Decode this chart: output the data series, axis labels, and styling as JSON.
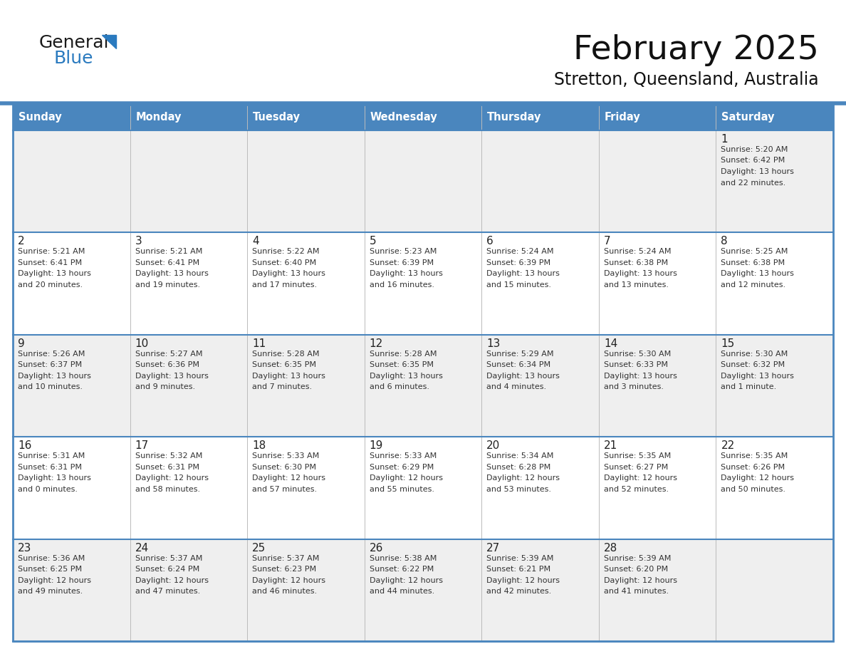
{
  "title": "February 2025",
  "subtitle": "Stretton, Queensland, Australia",
  "header_bg": "#4a86be",
  "header_text_color": "#ffffff",
  "days_of_week": [
    "Sunday",
    "Monday",
    "Tuesday",
    "Wednesday",
    "Thursday",
    "Friday",
    "Saturday"
  ],
  "row_bg_odd": "#efefef",
  "row_bg_even": "#ffffff",
  "cell_text_color": "#333333",
  "day_num_color": "#222222",
  "border_color": "#4a86be",
  "title_color": "#111111",
  "subtitle_color": "#111111",
  "calendar": [
    [
      {
        "day": "",
        "sunrise": "",
        "sunset": "",
        "daylight": ""
      },
      {
        "day": "",
        "sunrise": "",
        "sunset": "",
        "daylight": ""
      },
      {
        "day": "",
        "sunrise": "",
        "sunset": "",
        "daylight": ""
      },
      {
        "day": "",
        "sunrise": "",
        "sunset": "",
        "daylight": ""
      },
      {
        "day": "",
        "sunrise": "",
        "sunset": "",
        "daylight": ""
      },
      {
        "day": "",
        "sunrise": "",
        "sunset": "",
        "daylight": ""
      },
      {
        "day": "1",
        "sunrise": "5:20 AM",
        "sunset": "6:42 PM",
        "daylight": "13 hours\nand 22 minutes."
      }
    ],
    [
      {
        "day": "2",
        "sunrise": "5:21 AM",
        "sunset": "6:41 PM",
        "daylight": "13 hours\nand 20 minutes."
      },
      {
        "day": "3",
        "sunrise": "5:21 AM",
        "sunset": "6:41 PM",
        "daylight": "13 hours\nand 19 minutes."
      },
      {
        "day": "4",
        "sunrise": "5:22 AM",
        "sunset": "6:40 PM",
        "daylight": "13 hours\nand 17 minutes."
      },
      {
        "day": "5",
        "sunrise": "5:23 AM",
        "sunset": "6:39 PM",
        "daylight": "13 hours\nand 16 minutes."
      },
      {
        "day": "6",
        "sunrise": "5:24 AM",
        "sunset": "6:39 PM",
        "daylight": "13 hours\nand 15 minutes."
      },
      {
        "day": "7",
        "sunrise": "5:24 AM",
        "sunset": "6:38 PM",
        "daylight": "13 hours\nand 13 minutes."
      },
      {
        "day": "8",
        "sunrise": "5:25 AM",
        "sunset": "6:38 PM",
        "daylight": "13 hours\nand 12 minutes."
      }
    ],
    [
      {
        "day": "9",
        "sunrise": "5:26 AM",
        "sunset": "6:37 PM",
        "daylight": "13 hours\nand 10 minutes."
      },
      {
        "day": "10",
        "sunrise": "5:27 AM",
        "sunset": "6:36 PM",
        "daylight": "13 hours\nand 9 minutes."
      },
      {
        "day": "11",
        "sunrise": "5:28 AM",
        "sunset": "6:35 PM",
        "daylight": "13 hours\nand 7 minutes."
      },
      {
        "day": "12",
        "sunrise": "5:28 AM",
        "sunset": "6:35 PM",
        "daylight": "13 hours\nand 6 minutes."
      },
      {
        "day": "13",
        "sunrise": "5:29 AM",
        "sunset": "6:34 PM",
        "daylight": "13 hours\nand 4 minutes."
      },
      {
        "day": "14",
        "sunrise": "5:30 AM",
        "sunset": "6:33 PM",
        "daylight": "13 hours\nand 3 minutes."
      },
      {
        "day": "15",
        "sunrise": "5:30 AM",
        "sunset": "6:32 PM",
        "daylight": "13 hours\nand 1 minute."
      }
    ],
    [
      {
        "day": "16",
        "sunrise": "5:31 AM",
        "sunset": "6:31 PM",
        "daylight": "13 hours\nand 0 minutes."
      },
      {
        "day": "17",
        "sunrise": "5:32 AM",
        "sunset": "6:31 PM",
        "daylight": "12 hours\nand 58 minutes."
      },
      {
        "day": "18",
        "sunrise": "5:33 AM",
        "sunset": "6:30 PM",
        "daylight": "12 hours\nand 57 minutes."
      },
      {
        "day": "19",
        "sunrise": "5:33 AM",
        "sunset": "6:29 PM",
        "daylight": "12 hours\nand 55 minutes."
      },
      {
        "day": "20",
        "sunrise": "5:34 AM",
        "sunset": "6:28 PM",
        "daylight": "12 hours\nand 53 minutes."
      },
      {
        "day": "21",
        "sunrise": "5:35 AM",
        "sunset": "6:27 PM",
        "daylight": "12 hours\nand 52 minutes."
      },
      {
        "day": "22",
        "sunrise": "5:35 AM",
        "sunset": "6:26 PM",
        "daylight": "12 hours\nand 50 minutes."
      }
    ],
    [
      {
        "day": "23",
        "sunrise": "5:36 AM",
        "sunset": "6:25 PM",
        "daylight": "12 hours\nand 49 minutes."
      },
      {
        "day": "24",
        "sunrise": "5:37 AM",
        "sunset": "6:24 PM",
        "daylight": "12 hours\nand 47 minutes."
      },
      {
        "day": "25",
        "sunrise": "5:37 AM",
        "sunset": "6:23 PM",
        "daylight": "12 hours\nand 46 minutes."
      },
      {
        "day": "26",
        "sunrise": "5:38 AM",
        "sunset": "6:22 PM",
        "daylight": "12 hours\nand 44 minutes."
      },
      {
        "day": "27",
        "sunrise": "5:39 AM",
        "sunset": "6:21 PM",
        "daylight": "12 hours\nand 42 minutes."
      },
      {
        "day": "28",
        "sunrise": "5:39 AM",
        "sunset": "6:20 PM",
        "daylight": "12 hours\nand 41 minutes."
      },
      {
        "day": "",
        "sunrise": "",
        "sunset": "",
        "daylight": ""
      }
    ]
  ],
  "logo_text1": "General",
  "logo_text2": "Blue",
  "logo_color1": "#1a1a1a",
  "logo_color2": "#2a7abf",
  "logo_triangle_color": "#2a7abf",
  "fig_width": 11.88,
  "fig_height": 9.18,
  "dpi": 100
}
